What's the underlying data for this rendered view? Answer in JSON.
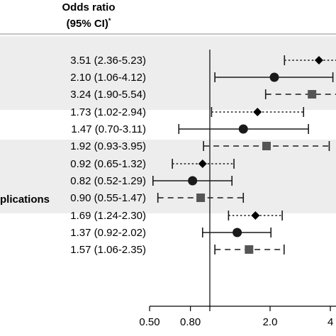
{
  "header": {
    "col_title": "Odds ratio",
    "col_subtitle": "(95% CI)",
    "col_subtitle_sup": "*"
  },
  "section_label": "plications",
  "colors": {
    "band": "#ededed",
    "marks": "#1a1a1a",
    "square": "#555555"
  },
  "chart_data": {
    "type": "forest",
    "x_axis": {
      "scale": "log",
      "ticks": [
        0.5,
        0.8,
        2.0,
        4.0
      ],
      "tick_labels": [
        "0.50",
        "0.80",
        "2.0",
        "4"
      ],
      "reference_line": 1.0,
      "visible_range": [
        0.5,
        4.0
      ]
    },
    "groups": [
      {
        "shaded": true,
        "label": "",
        "rows": [
          {
            "text": "3.51 (2.36-5.23)",
            "or": 3.51,
            "lo": 2.36,
            "hi": 5.23,
            "marker": "diamond",
            "line": "dotted"
          },
          {
            "text": "2.10 (1.06-4.12)",
            "or": 2.1,
            "lo": 1.06,
            "hi": 4.12,
            "marker": "circle",
            "line": "solid"
          },
          {
            "text": "3.24 (1.90-5.54)",
            "or": 3.24,
            "lo": 1.9,
            "hi": 5.54,
            "marker": "square",
            "line": "dashed"
          }
        ]
      },
      {
        "shaded": false,
        "label": "",
        "rows": [
          {
            "text": "1.73 (1.02-2.94)",
            "or": 1.73,
            "lo": 1.02,
            "hi": 2.94,
            "marker": "diamond",
            "line": "dotted"
          },
          {
            "text": "1.47 (0.70-3.11)",
            "or": 1.47,
            "lo": 0.7,
            "hi": 3.11,
            "marker": "circle",
            "line": "solid"
          },
          {
            "text": "1.92 (0.93-3.95)",
            "or": 1.92,
            "lo": 0.93,
            "hi": 3.95,
            "marker": "square",
            "line": "dashed"
          }
        ]
      },
      {
        "shaded": true,
        "label": "",
        "rows": [
          {
            "text": "0.92 (0.65-1.32)",
            "or": 0.92,
            "lo": 0.65,
            "hi": 1.32,
            "marker": "diamond",
            "line": "dotted"
          },
          {
            "text": "0.82 (0.52-1.29)",
            "or": 0.82,
            "lo": 0.52,
            "hi": 1.29,
            "marker": "circle",
            "line": "solid"
          },
          {
            "text": "0.90 (0.55-1.47)",
            "or": 0.9,
            "lo": 0.55,
            "hi": 1.47,
            "marker": "square",
            "line": "dashed"
          }
        ]
      },
      {
        "shaded": false,
        "label": "plications",
        "rows": [
          {
            "text": "1.69 (1.24-2.30)",
            "or": 1.69,
            "lo": 1.24,
            "hi": 2.3,
            "marker": "diamond",
            "line": "dotted"
          },
          {
            "text": "1.37 (0.92-2.02)",
            "or": 1.37,
            "lo": 0.92,
            "hi": 2.02,
            "marker": "circle",
            "line": "solid"
          },
          {
            "text": "1.57 (1.06-2.35)",
            "or": 1.57,
            "lo": 1.06,
            "hi": 2.35,
            "marker": "square",
            "line": "dashed"
          }
        ]
      }
    ]
  }
}
